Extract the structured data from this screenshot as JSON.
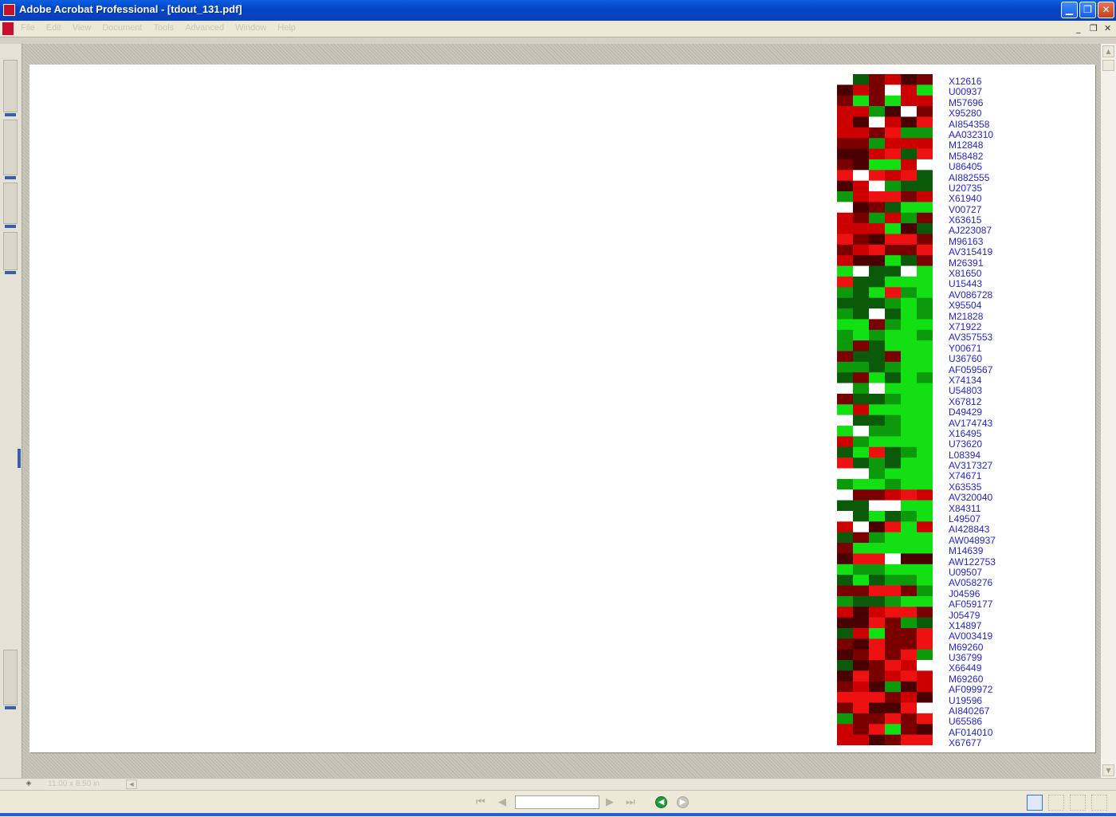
{
  "window": {
    "title": "Adobe Acrobat Professional - [tdout_131.pdf]",
    "minimize_glyph": "▁",
    "restore_glyph": "❐",
    "close_glyph": "✕"
  },
  "menubar": {
    "items": [
      "File",
      "Edit",
      "View",
      "Document",
      "Tools",
      "Advanced",
      "Window",
      "Help"
    ],
    "mdi_min": "_",
    "mdi_restore": "❐",
    "mdi_close": "✕"
  },
  "document": {
    "heatmap_columns": 6,
    "heatmap_colors": {
      "strong_red": "#ee1111",
      "red": "#cc0000",
      "dark_red": "#7a0000",
      "very_dark_red": "#4a0000",
      "dark_green": "#0a5a0a",
      "green": "#0c9a0c",
      "bright_green": "#12e012",
      "missing": "#ffffff"
    },
    "gene_ids": [
      "X12616",
      "U00937",
      "M57696",
      "X95280",
      "AI854358",
      "AA032310",
      "M12848",
      "M58482",
      "U86405",
      "AI882555",
      "U20735",
      "X61940",
      "V00727",
      "X63615",
      "AJ223087",
      "M96163",
      "AV315419",
      "M26391",
      "X81650",
      "U15443",
      "AV086728",
      "X95504",
      "M21828",
      "X71922",
      "AV357553",
      "Y00671",
      "U36760",
      "AF059567",
      "X74134",
      "U54803",
      "X67812",
      "D49429",
      "AV174743",
      "X16495",
      "U73620",
      "L08394",
      "AV317327",
      "X74671",
      "X63535",
      "AV320040",
      "X84311",
      "L49507",
      "AI428843",
      "AW048937",
      "M14639",
      "AW122753",
      "U09507",
      "AV058276",
      "J04596",
      "AF059177",
      "J05479",
      "X14897",
      "AV003419",
      "M69260",
      "U36799",
      "X66449",
      "M69260",
      "AF099972",
      "U19596",
      "AI840267",
      "U65586",
      "AF014010",
      "X67677"
    ]
  },
  "statusbar": {
    "size_info": "11.00 x 8.50 in",
    "page_field": "",
    "first_page": "⏮",
    "prev_page": "◀",
    "next_page": "▶",
    "last_page": "⏭",
    "back": "◀",
    "forward": "▶"
  }
}
